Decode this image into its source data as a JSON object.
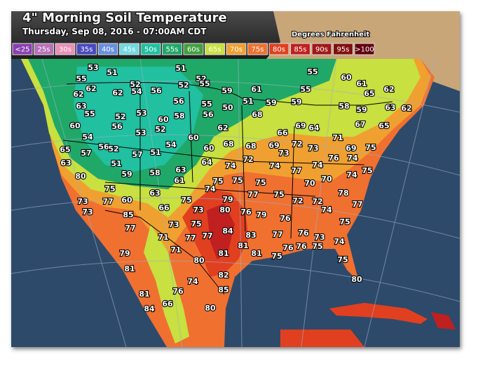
{
  "header": {
    "title": "4\" Morning Soil Temperature",
    "subtitle": "Thursday, Sep 08, 2016 - 07:00AM CDT",
    "units": "Degrees Fahrenheit"
  },
  "legend": [
    {
      "label": "<25",
      "color": "#8a3fb0"
    },
    {
      "label": "25s",
      "color": "#b870b8"
    },
    {
      "label": "30s",
      "color": "#e890b8"
    },
    {
      "label": "35s",
      "color": "#4848c0"
    },
    {
      "label": "40s",
      "color": "#6890e0"
    },
    {
      "label": "45s",
      "color": "#70d8e0"
    },
    {
      "label": "50s",
      "color": "#20c0a0"
    },
    {
      "label": "55s",
      "color": "#20a868"
    },
    {
      "label": "60s",
      "color": "#40a040"
    },
    {
      "label": "65s",
      "color": "#c8e040"
    },
    {
      "label": "70s",
      "color": "#f0a030"
    },
    {
      "label": "75s",
      "color": "#f07030"
    },
    {
      "label": "80s",
      "color": "#e04020"
    },
    {
      "label": "85s",
      "color": "#c02020"
    },
    {
      "label": "90s",
      "color": "#a01818"
    },
    {
      "label": "95s",
      "color": "#801010"
    },
    {
      "label": ">100",
      "color": "#600010"
    }
  ],
  "stations": [
    53,
    51,
    51,
    52,
    55,
    55,
    52,
    54,
    56,
    62,
    52,
    55,
    59,
    61,
    55,
    60,
    61,
    65,
    62,
    62,
    62,
    63,
    55,
    52,
    53,
    56,
    55,
    50,
    51,
    59,
    59,
    58,
    59,
    63,
    62,
    60,
    56,
    53,
    60,
    58,
    56,
    52,
    62,
    68,
    66,
    69,
    64,
    67,
    65,
    54,
    56,
    52,
    57,
    65,
    57,
    51,
    54,
    60,
    60,
    68,
    68,
    69,
    73,
    72,
    73,
    71,
    69,
    75,
    63,
    51,
    59,
    58,
    63,
    64,
    74,
    72,
    74,
    77,
    74,
    76,
    74,
    75,
    80,
    61,
    74,
    75,
    75,
    75,
    70,
    70,
    74,
    75,
    63,
    78,
    75,
    77,
    73,
    77,
    60,
    75,
    79,
    72,
    72,
    77,
    73,
    85,
    66,
    73,
    80,
    76,
    79,
    74,
    75,
    73,
    76,
    75,
    77,
    77,
    77,
    84,
    83,
    77,
    76,
    73,
    71,
    75,
    74,
    81,
    81,
    76,
    76,
    79,
    71,
    81,
    75,
    80,
    81,
    75,
    82,
    74,
    80,
    76,
    85,
    81,
    66,
    84,
    80
  ]
}
